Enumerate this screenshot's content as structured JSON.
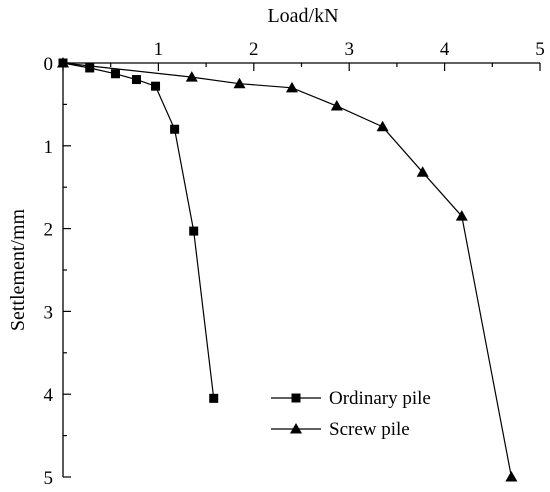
{
  "chart_data": {
    "type": "line",
    "xlabel": "Load/kN",
    "ylabel": "Settlement/mm",
    "xlim": [
      0,
      5
    ],
    "ylim": [
      0,
      5
    ],
    "x_axis_position": "top",
    "y_axis_inverted": true,
    "grid": false,
    "legend_position": "bottom-right",
    "x_ticks": [
      "0",
      "1",
      "2",
      "3",
      "4",
      "5"
    ],
    "y_ticks": [
      "0",
      "1",
      "2",
      "3",
      "4",
      "5"
    ],
    "series": [
      {
        "name": "Ordinary pile",
        "marker": "square",
        "x": [
          0,
          0.28,
          0.55,
          0.77,
          0.97,
          1.17,
          1.37,
          1.58
        ],
        "y": [
          0,
          0.06,
          0.13,
          0.2,
          0.28,
          0.8,
          2.03,
          4.05
        ]
      },
      {
        "name": "Screw pile",
        "marker": "triangle",
        "x": [
          0,
          1.35,
          1.85,
          2.4,
          2.87,
          3.35,
          3.77,
          4.18,
          4.7
        ],
        "y": [
          0,
          0.17,
          0.25,
          0.3,
          0.52,
          0.77,
          1.32,
          1.85,
          5.0
        ]
      }
    ]
  }
}
